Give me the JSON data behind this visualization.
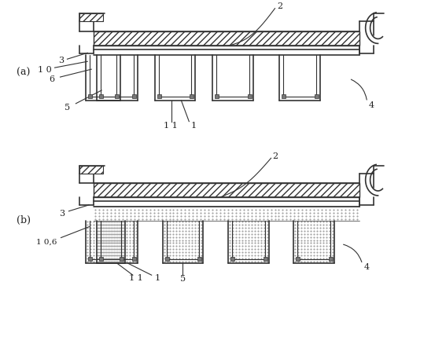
{
  "bg_color": "#ffffff",
  "line_color": "#333333",
  "figsize": [
    5.67,
    4.29
  ],
  "dpi": 100,
  "panel_a_label": "(a)",
  "panel_b_label": "(b)",
  "label_2": "2",
  "label_3": "3",
  "label_4": "4",
  "label_5": "5",
  "label_6": "6",
  "label_10": "1 0",
  "label_11": "1 1",
  "label_1": "1",
  "label_10b": "1 0,6"
}
